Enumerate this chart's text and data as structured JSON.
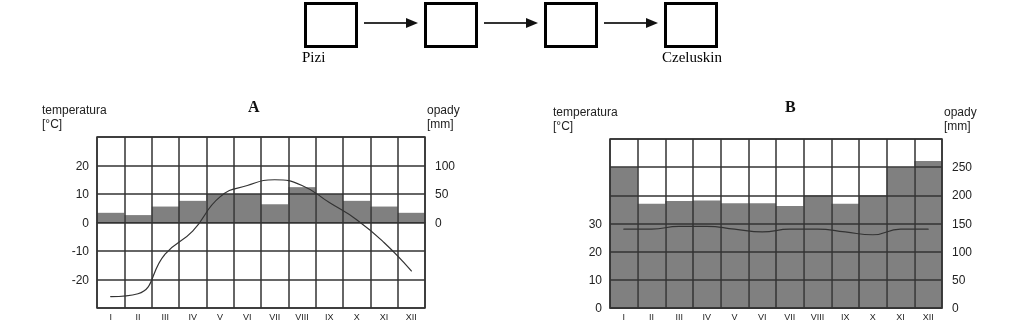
{
  "chart_data": [
    {
      "type": "other",
      "categories": [
        "Pizi",
        null,
        null,
        "Czeluskin"
      ],
      "color": "#000000"
    },
    {
      "type": "bar",
      "title": "A",
      "ylabel": "temperatura [°C]",
      "y2label": "opady [mm]",
      "categories": [
        "I",
        "II",
        "III",
        "IV",
        "V",
        "VI",
        "VII",
        "VIII",
        "IX",
        "X",
        "XI",
        "XII"
      ],
      "series": [
        {
          "type": "bar",
          "axis": "y2",
          "color": "#808080",
          "values": [
            17,
            13,
            28,
            38,
            50,
            50,
            32,
            62,
            50,
            38,
            28,
            17
          ]
        },
        {
          "type": "line",
          "color": "#333333",
          "values": [
            -26,
            -25,
            -11,
            -3,
            9,
            13,
            15,
            13,
            7,
            1,
            -7,
            -17
          ]
        }
      ],
      "ylim": [
        -30,
        30
      ],
      "yticks": [
        -20,
        -10,
        0,
        10,
        20
      ],
      "y2lim": [
        -150,
        150
      ],
      "y2ticks": [
        0,
        50,
        100
      ],
      "grid": true,
      "marker": "none",
      "line_style": "solid"
    },
    {
      "type": "bar",
      "title": "B",
      "ylabel": "temperatura [°C]",
      "y2label": "opady [mm]",
      "categories": [
        "I",
        "II",
        "III",
        "IV",
        "V",
        "VI",
        "VII",
        "VIII",
        "IX",
        "X",
        "XI",
        "XII"
      ],
      "series": [
        {
          "type": "bar",
          "axis": "y2",
          "color": "#808080",
          "values": [
            250,
            185,
            190,
            191,
            186,
            186,
            181,
            200,
            185,
            200,
            250,
            261
          ]
        },
        {
          "type": "line",
          "color": "#333333",
          "values": [
            28,
            28,
            29,
            29,
            28,
            27,
            28,
            28,
            27,
            26,
            28,
            28
          ]
        }
      ],
      "ylim": [
        0,
        60
      ],
      "yticks": [
        0,
        10,
        20,
        30
      ],
      "y2lim": [
        0,
        300
      ],
      "y2ticks": [
        0,
        50,
        100,
        150,
        200,
        250
      ],
      "grid": true,
      "marker": "none",
      "line_style": "solid"
    }
  ]
}
